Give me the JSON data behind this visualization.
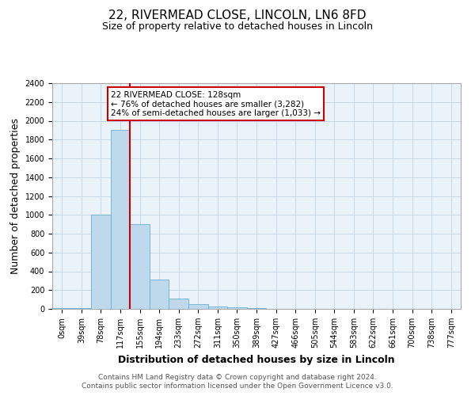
{
  "title1": "22, RIVERMEAD CLOSE, LINCOLN, LN6 8FD",
  "title2": "Size of property relative to detached houses in Lincoln",
  "xlabel": "Distribution of detached houses by size in Lincoln",
  "ylabel": "Number of detached properties",
  "footnote1": "Contains HM Land Registry data © Crown copyright and database right 2024.",
  "footnote2": "Contains public sector information licensed under the Open Government Licence v3.0.",
  "annotation_title": "22 RIVERMEAD CLOSE: 128sqm",
  "annotation_line1": "← 76% of detached houses are smaller (3,282)",
  "annotation_line2": "24% of semi-detached houses are larger (1,033) →",
  "bin_labels": [
    "0sqm",
    "39sqm",
    "78sqm",
    "117sqm",
    "155sqm",
    "194sqm",
    "233sqm",
    "272sqm",
    "311sqm",
    "350sqm",
    "389sqm",
    "427sqm",
    "466sqm",
    "505sqm",
    "544sqm",
    "583sqm",
    "622sqm",
    "661sqm",
    "700sqm",
    "738sqm",
    "777sqm"
  ],
  "bar_values": [
    10,
    10,
    1000,
    1900,
    900,
    310,
    110,
    50,
    25,
    15,
    10,
    0,
    0,
    0,
    0,
    0,
    0,
    0,
    0,
    0,
    0
  ],
  "bar_color": "#bed8ec",
  "bar_edge_color": "#6aafd6",
  "ylim": [
    0,
    2400
  ],
  "yticks": [
    0,
    200,
    400,
    600,
    800,
    1000,
    1200,
    1400,
    1600,
    1800,
    2000,
    2200,
    2400
  ],
  "plot_bg_color": "#eaf2fa",
  "grid_color": "#c5d8eb",
  "annotation_box_color": "#ffffff",
  "annotation_box_edge": "#cc0000",
  "red_line_color": "#cc0000",
  "title1_fontsize": 11,
  "title2_fontsize": 9,
  "axis_label_fontsize": 9,
  "xlabel_fontsize": 9,
  "tick_fontsize": 7,
  "footnote_fontsize": 6.5,
  "annotation_fontsize": 7.5
}
